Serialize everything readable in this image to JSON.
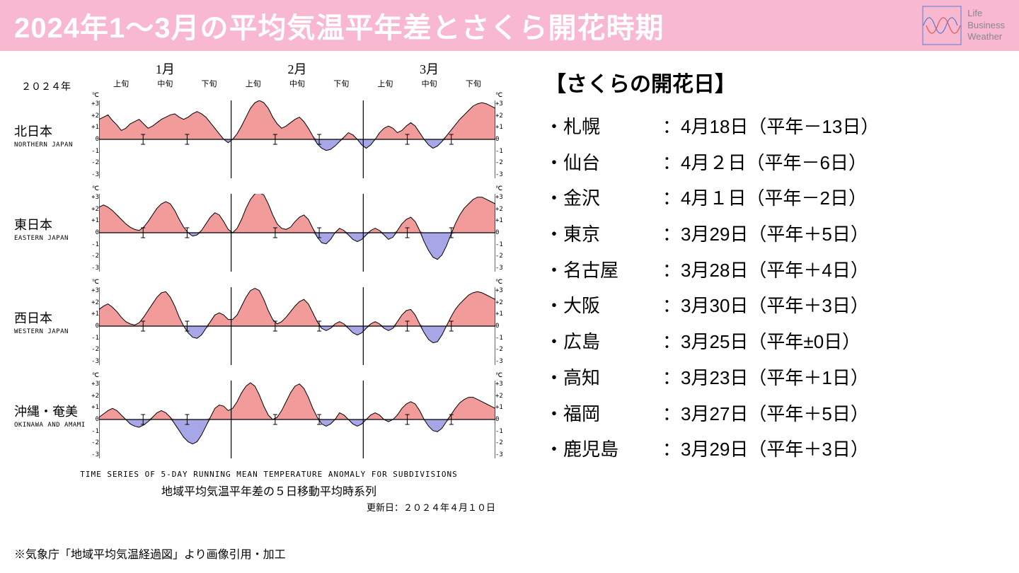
{
  "header": {
    "title": "2024年1〜3月の平均気温平年差とさくら開花時期",
    "logo_lines": [
      "Life",
      "Business",
      "Weather"
    ]
  },
  "chart": {
    "year_label": "２０２４年",
    "months": [
      "1月",
      "2月",
      "3月"
    ],
    "subperiods": [
      "上旬",
      "中旬",
      "下旬",
      "上旬",
      "中旬",
      "下旬",
      "上旬",
      "中旬",
      "下旬"
    ],
    "y_unit": "℃",
    "y_ticks": [
      "+3",
      "+2",
      "+1",
      "0",
      "-1",
      "-2",
      "-3"
    ],
    "ylim": [
      -3.5,
      3.5
    ],
    "fill_pos_color": "#f29b9b",
    "fill_neg_color": "#a7a7e8",
    "line_color": "#000000",
    "axis_color": "#000000",
    "background_color": "#ffffff",
    "n_points": 90,
    "panels": [
      {
        "label_jp": "北日本",
        "label_en": "NORTHERN JAPAN",
        "values": [
          1.8,
          2.0,
          2.2,
          1.7,
          1.3,
          0.8,
          1.0,
          1.4,
          1.6,
          1.8,
          1.4,
          1.0,
          1.2,
          1.5,
          1.8,
          2.0,
          2.2,
          2.3,
          2.0,
          1.8,
          2.0,
          2.3,
          2.5,
          2.3,
          2.0,
          1.5,
          1.0,
          0.5,
          0.0,
          -0.3,
          0.0,
          0.5,
          1.2,
          2.0,
          2.8,
          3.3,
          3.5,
          3.3,
          2.8,
          2.0,
          1.4,
          1.0,
          1.2,
          1.5,
          1.8,
          2.0,
          1.6,
          1.0,
          0.3,
          -0.4,
          -0.8,
          -1.0,
          -0.9,
          -0.6,
          -0.2,
          0.2,
          0.6,
          0.4,
          0.0,
          -0.5,
          -0.8,
          -0.5,
          0.0,
          0.6,
          1.0,
          1.2,
          1.0,
          0.6,
          0.8,
          1.2,
          1.5,
          1.2,
          0.6,
          0.0,
          -0.5,
          -0.8,
          -0.6,
          -0.2,
          0.3,
          0.8,
          1.3,
          1.8,
          2.2,
          2.6,
          3.0,
          3.2,
          3.3,
          3.2,
          3.0,
          2.8
        ]
      },
      {
        "label_jp": "東日本",
        "label_en": "EASTERN JAPAN",
        "values": [
          2.3,
          2.5,
          2.3,
          2.0,
          1.6,
          1.2,
          0.8,
          0.5,
          0.3,
          0.2,
          0.5,
          1.0,
          1.6,
          2.2,
          2.6,
          2.8,
          2.6,
          2.0,
          1.2,
          0.5,
          0.0,
          -0.3,
          -0.2,
          0.2,
          0.8,
          1.4,
          1.8,
          1.6,
          1.0,
          0.3,
          0.0,
          0.4,
          1.2,
          2.2,
          3.0,
          3.5,
          3.6,
          3.4,
          2.6,
          1.6,
          0.8,
          0.4,
          0.3,
          0.5,
          1.0,
          1.4,
          1.6,
          1.2,
          0.4,
          -0.4,
          -0.9,
          -1.0,
          -0.6,
          0.0,
          0.4,
          0.2,
          -0.2,
          -0.6,
          -0.8,
          -0.6,
          -0.2,
          0.2,
          0.4,
          0.2,
          -0.2,
          -0.6,
          -0.4,
          0.2,
          0.8,
          1.2,
          1.4,
          1.0,
          0.2,
          -0.8,
          -1.6,
          -2.2,
          -2.4,
          -2.0,
          -1.2,
          -0.2,
          0.8,
          1.6,
          2.2,
          2.6,
          3.0,
          3.2,
          3.2,
          3.0,
          2.8,
          2.6
        ]
      },
      {
        "label_jp": "西日本",
        "label_en": "WESTERN JAPAN",
        "values": [
          1.5,
          1.8,
          2.0,
          1.7,
          1.3,
          0.8,
          0.4,
          0.2,
          0.1,
          0.3,
          0.8,
          1.4,
          2.0,
          2.6,
          3.0,
          3.1,
          2.6,
          1.8,
          0.8,
          0.0,
          -0.6,
          -1.0,
          -1.1,
          -0.8,
          -0.2,
          0.4,
          1.0,
          1.2,
          1.0,
          0.6,
          0.6,
          1.0,
          1.8,
          2.6,
          3.2,
          3.4,
          3.2,
          2.4,
          1.4,
          0.6,
          0.2,
          0.4,
          0.8,
          1.3,
          1.8,
          2.2,
          2.4,
          2.0,
          1.2,
          0.4,
          -0.2,
          -0.4,
          -0.2,
          0.2,
          0.4,
          0.2,
          -0.2,
          -0.6,
          -0.8,
          -0.6,
          -0.2,
          0.2,
          0.4,
          0.2,
          -0.2,
          -0.4,
          -0.2,
          0.4,
          1.0,
          1.4,
          1.5,
          1.0,
          0.2,
          -0.6,
          -1.2,
          -1.5,
          -1.4,
          -0.8,
          0.0,
          0.8,
          1.5,
          2.0,
          2.4,
          2.8,
          3.0,
          3.1,
          3.0,
          2.8,
          2.6,
          2.4
        ]
      },
      {
        "label_jp": "沖縄・奄美",
        "label_en": "OKINAWA AND AMAMI",
        "values": [
          0.2,
          0.5,
          0.8,
          1.0,
          0.8,
          0.4,
          0.0,
          -0.4,
          -0.6,
          -0.7,
          -0.5,
          -0.2,
          0.2,
          0.6,
          0.8,
          0.6,
          0.2,
          -0.4,
          -1.0,
          -1.6,
          -2.0,
          -2.2,
          -2.0,
          -1.4,
          -0.6,
          0.2,
          1.0,
          1.3,
          1.2,
          0.8,
          1.0,
          1.6,
          2.4,
          3.0,
          3.3,
          3.0,
          2.2,
          1.2,
          0.4,
          0.0,
          0.2,
          0.8,
          1.6,
          2.4,
          3.0,
          3.2,
          2.8,
          2.0,
          1.0,
          0.2,
          -0.4,
          -0.6,
          -0.4,
          0.0,
          0.6,
          0.4,
          0.0,
          -0.4,
          -0.6,
          -0.4,
          0.0,
          0.4,
          0.6,
          0.4,
          0.0,
          -0.2,
          0.0,
          0.4,
          1.0,
          1.4,
          1.6,
          1.4,
          0.8,
          0.0,
          -0.6,
          -1.0,
          -1.1,
          -0.8,
          -0.2,
          0.4,
          1.0,
          1.5,
          1.8,
          2.0,
          2.0,
          1.8,
          1.6,
          1.4,
          1.2,
          1.0
        ]
      }
    ],
    "caption_en": "TIME SERIES OF 5-DAY RUNNING MEAN TEMPERATURE ANOMALY FOR SUBDIVISIONS",
    "caption_jp": "地域平均気温平年差の５日移動平均時系列",
    "update_label": "更新日：２０２４年４月１０日"
  },
  "bloom": {
    "title": "【さくらの開花日】",
    "cities": [
      {
        "city": "札幌",
        "date": "4月18日",
        "diff": "（平年－13日）"
      },
      {
        "city": "仙台",
        "date": "4月２日",
        "diff": "（平年－6日）"
      },
      {
        "city": "金沢",
        "date": "4月１日",
        "diff": "（平年－2日）"
      },
      {
        "city": "東京",
        "date": "3月29日",
        "diff": "（平年＋5日）"
      },
      {
        "city": "名古屋",
        "date": "3月28日",
        "diff": "（平年＋4日）"
      },
      {
        "city": "大阪",
        "date": "3月30日",
        "diff": "（平年＋3日）"
      },
      {
        "city": "広島",
        "date": "3月25日",
        "diff": "（平年±0日）"
      },
      {
        "city": "高知",
        "date": "3月23日",
        "diff": "（平年＋1日）"
      },
      {
        "city": "福岡",
        "date": "3月27日",
        "diff": "（平年＋5日）"
      },
      {
        "city": "鹿児島",
        "date": "3月29日",
        "diff": "（平年＋3日）"
      }
    ]
  },
  "footnote": "※気象庁「地域平均気温経過図」より画像引用・加工"
}
